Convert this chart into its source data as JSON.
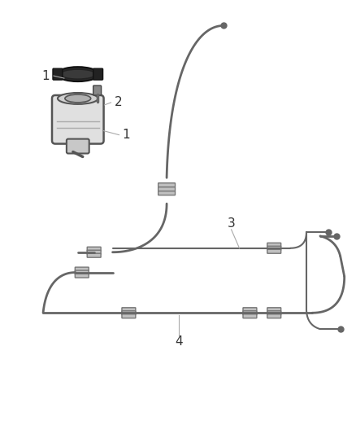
{
  "background_color": "#ffffff",
  "line_color": "#666666",
  "label_color": "#333333",
  "fig_width": 4.38,
  "fig_height": 5.33,
  "dpi": 100
}
